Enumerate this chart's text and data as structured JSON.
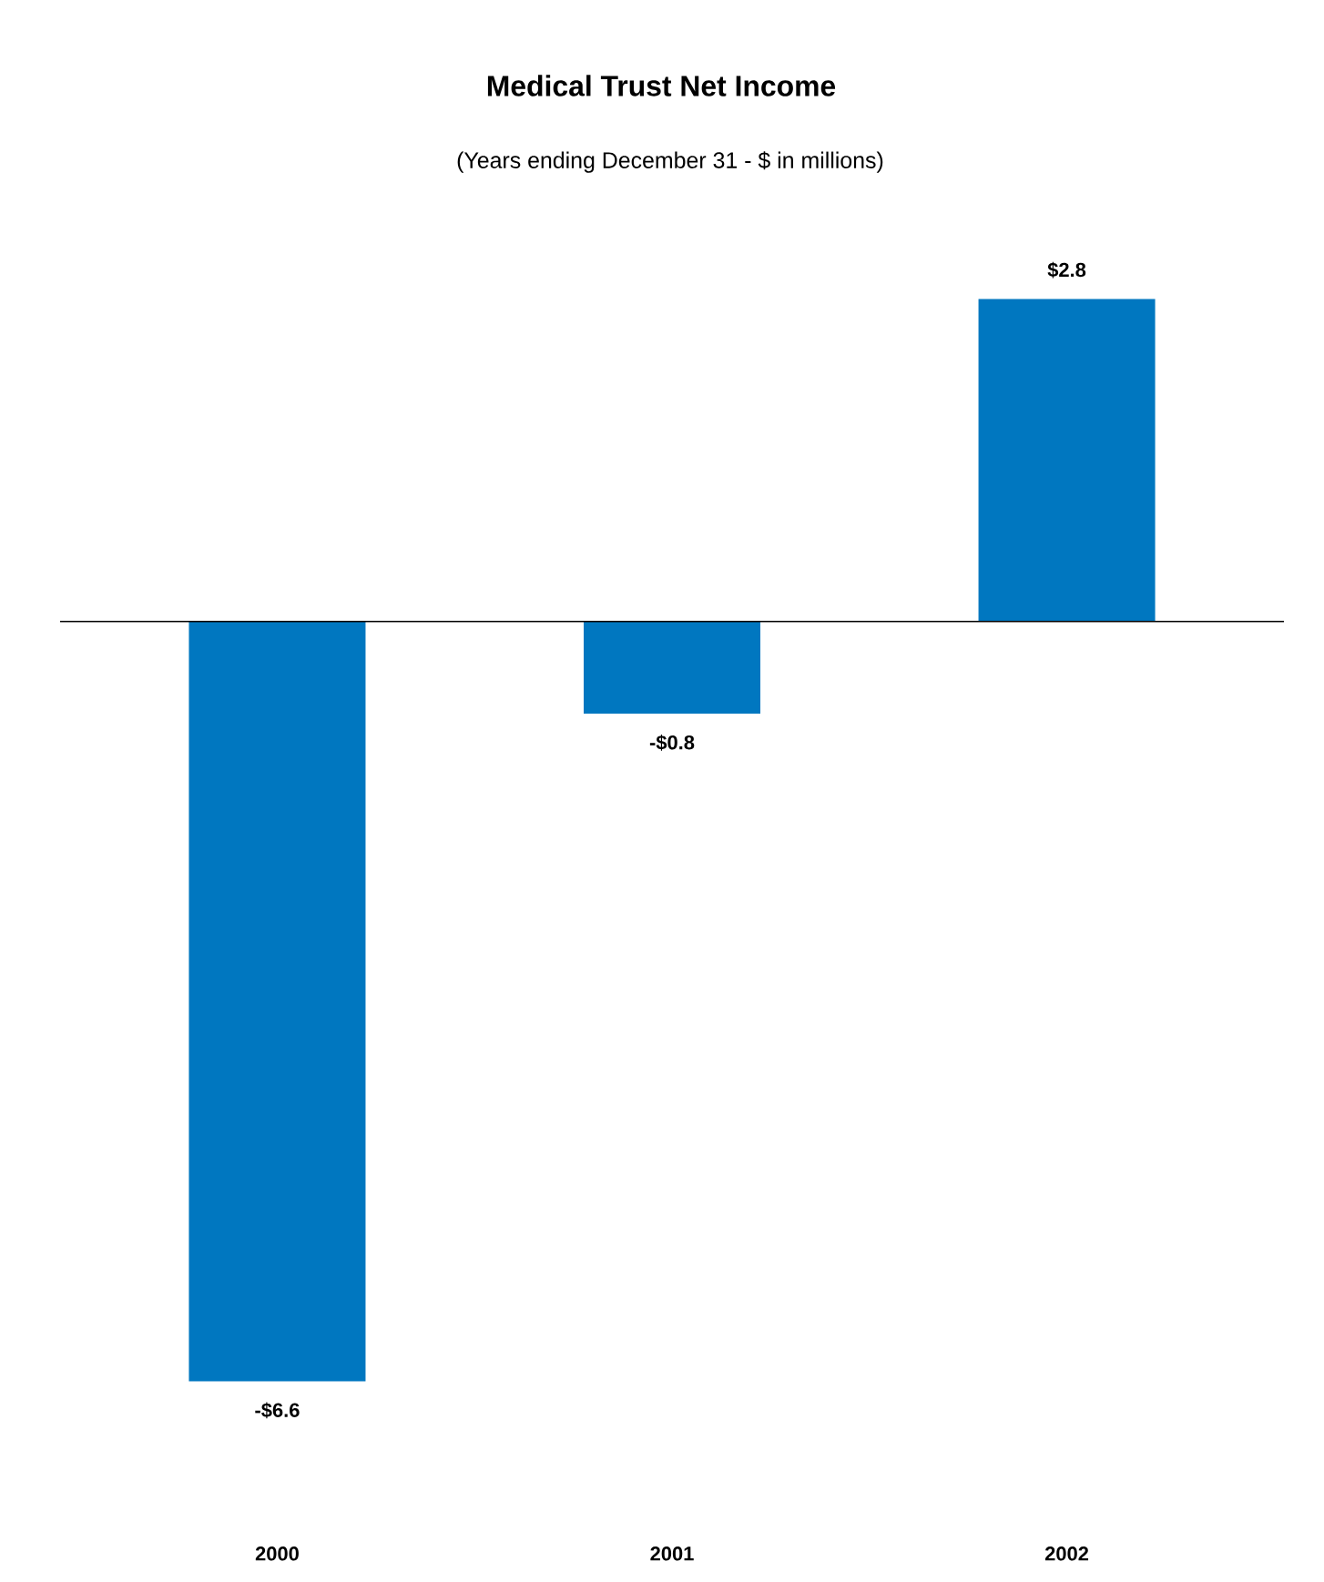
{
  "chart_data": {
    "type": "bar",
    "title": "Medical Trust Net Income",
    "subtitle": "(Years ending December 31 - $ in millions)",
    "categories": [
      "2000",
      "2001",
      "2002"
    ],
    "values": [
      -6.6,
      -0.8,
      2.8
    ],
    "value_labels": [
      "-$6.6",
      "-$0.8",
      "$2.8"
    ],
    "color": "#0077c0"
  }
}
